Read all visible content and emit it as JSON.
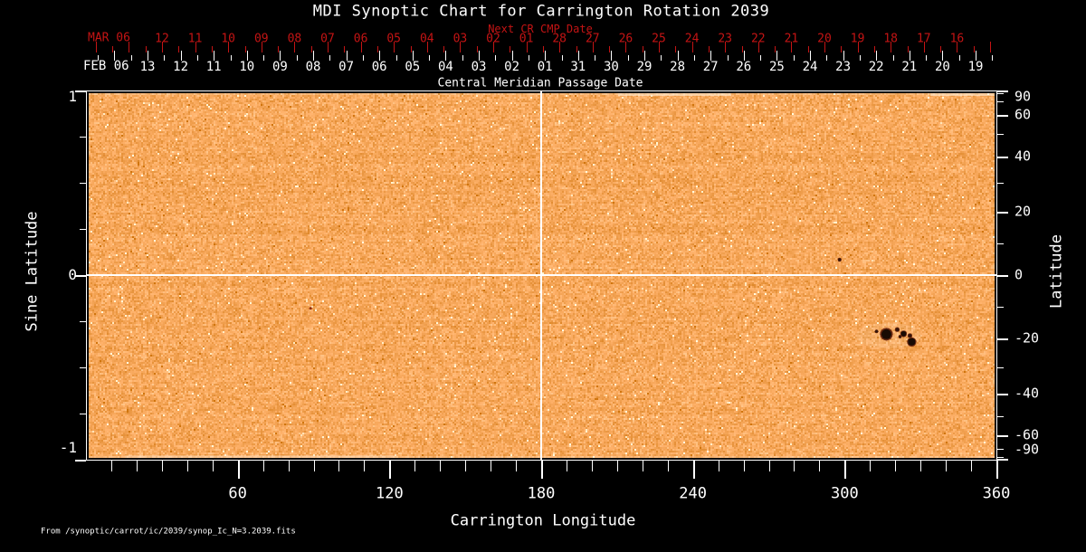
{
  "title": "MDI Synoptic Chart for Carrington Rotation 2039",
  "source_note": "From  /synoptic/carrot/ic/2039/synop_Ic_N=3.2039.fits",
  "chart_data": {
    "type": "heatmap",
    "description": "Solar MDI intensity-continuum synoptic map for Carrington rotation 2039; orange granulation field with a sunspot group near 320 deg longitude and -20 deg latitude",
    "top_axis": {
      "next_cr_label": "Next CR CMP Date",
      "red_month_label": "MAR 06",
      "red_dates": [
        "12",
        "11",
        "10",
        "09",
        "08",
        "07",
        "06",
        "05",
        "04",
        "03",
        "02",
        "01",
        "28",
        "27",
        "26",
        "25",
        "24",
        "23",
        "22",
        "21",
        "20",
        "19",
        "18",
        "17",
        "16"
      ],
      "white_month_label": "FEB 06",
      "white_dates": [
        "13",
        "12",
        "11",
        "10",
        "09",
        "08",
        "07",
        "06",
        "05",
        "04",
        "03",
        "02",
        "01",
        "31",
        "30",
        "29",
        "28",
        "27",
        "26",
        "25",
        "24",
        "23",
        "22",
        "21",
        "20",
        "19"
      ],
      "axis_label": "Central Meridian Passage Date"
    },
    "x_axis": {
      "label": "Carrington Longitude",
      "range": [
        0,
        360
      ],
      "major_ticks": [
        60,
        120,
        180,
        240,
        300,
        360
      ],
      "minor_step": 10
    },
    "y_axis_left": {
      "label": "Sine Latitude",
      "range": [
        -1,
        1
      ],
      "major_ticks": [
        1,
        0,
        -1
      ],
      "minor_ticks": [
        0.75,
        0.5,
        0.25,
        -0.25,
        -0.5,
        -0.75
      ]
    },
    "y_axis_right": {
      "label": "Latitude",
      "labeled_ticks": [
        90,
        60,
        40,
        20,
        0,
        -20,
        -40,
        -60,
        -90
      ],
      "minor_ticks": [
        80,
        70,
        50,
        30,
        10,
        -10,
        -30,
        -50,
        -70,
        -80
      ]
    },
    "reference_lines": {
      "longitude": 180,
      "latitude": 0
    },
    "colors": {
      "background": "#000000",
      "axis_text": "#ffffff",
      "next_cr_red": "#c41414",
      "map_base": "#f7a85c",
      "sunspot_core": "#1a0c05"
    },
    "sunspots": [
      {
        "longitude": 312.6,
        "sine_latitude": -0.305,
        "r": 1.6
      },
      {
        "longitude": 316.5,
        "sine_latitude": -0.32,
        "r": 5.5
      },
      {
        "longitude": 320.8,
        "sine_latitude": -0.295,
        "r": 2.0
      },
      {
        "longitude": 323.3,
        "sine_latitude": -0.318,
        "r": 2.8
      },
      {
        "longitude": 325.8,
        "sine_latitude": -0.328,
        "r": 2.0
      },
      {
        "longitude": 326.5,
        "sine_latitude": -0.362,
        "r": 4.0
      },
      {
        "longitude": 321.9,
        "sine_latitude": -0.333,
        "r": 1.5
      },
      {
        "longitude": 298.0,
        "sine_latitude": 0.083,
        "r": 1.7
      },
      {
        "longitude": 88.8,
        "sine_latitude": -0.18,
        "r": 1.2
      }
    ]
  }
}
